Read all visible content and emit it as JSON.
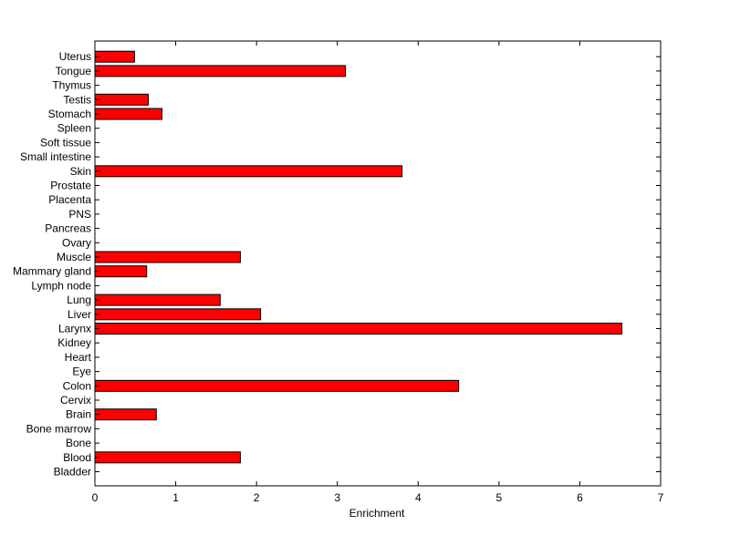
{
  "chart_data": {
    "type": "bar",
    "orientation": "horizontal",
    "categories": [
      "Bladder",
      "Blood",
      "Bone",
      "Bone marrow",
      "Brain",
      "Cervix",
      "Colon",
      "Eye",
      "Heart",
      "Kidney",
      "Larynx",
      "Liver",
      "Lung",
      "Lymph node",
      "Mammary gland",
      "Muscle",
      "Ovary",
      "Pancreas",
      "PNS",
      "Placenta",
      "Prostate",
      "Skin",
      "Small intestine",
      "Soft tissue",
      "Spleen",
      "Stomach",
      "Testis",
      "Thymus",
      "Tongue",
      "Uterus"
    ],
    "values": [
      0,
      1.8,
      0,
      0,
      0.76,
      0,
      4.5,
      0,
      0,
      0,
      6.52,
      2.05,
      1.55,
      0,
      0.64,
      1.8,
      0,
      0,
      0,
      0,
      0,
      3.8,
      0,
      0,
      0,
      0.83,
      0.66,
      0,
      3.1,
      0.49
    ],
    "xlabel": "Enrichment",
    "ylabel": "",
    "title": "",
    "xlim": [
      0,
      7
    ],
    "xticks": [
      "0",
      "1",
      "2",
      "3",
      "4",
      "5",
      "6",
      "7"
    ],
    "grid": false,
    "bar_color": "#ff0000",
    "bar_edge_color": "#000000"
  }
}
